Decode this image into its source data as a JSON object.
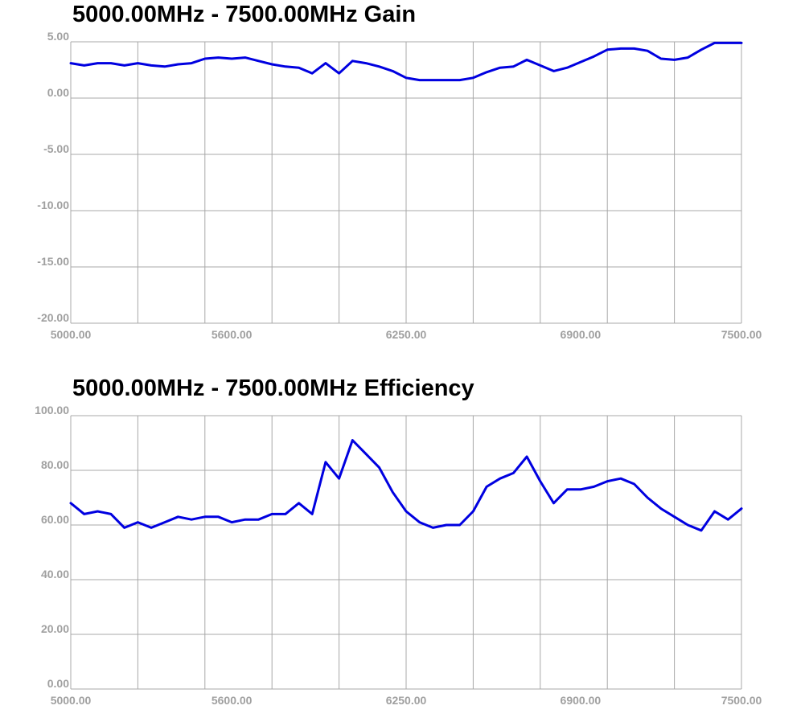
{
  "chart_data": [
    {
      "type": "line",
      "title": "5000.00MHz - 7500.00MHz Gain",
      "xlabel": "",
      "ylabel": "",
      "xlim": [
        5000,
        7500
      ],
      "ylim": [
        -20,
        5
      ],
      "x_ticks": [
        5000,
        5600,
        6250,
        6900,
        7500
      ],
      "x_tick_labels": [
        "5000.00",
        "5600.00",
        "6250.00",
        "6900.00",
        "7500.00"
      ],
      "y_tick_labels": [
        "5.00",
        "0.00",
        "-5.00",
        "-10.00",
        "-15.00",
        "-20.00"
      ],
      "y_ticks": [
        5,
        0,
        -5,
        -10,
        -15,
        -20
      ],
      "grid": true,
      "line_color": "#0000e0",
      "series": [
        {
          "x": [
            5000,
            5050,
            5100,
            5150,
            5200,
            5250,
            5300,
            5350,
            5400,
            5450,
            5500,
            5550,
            5600,
            5650,
            5700,
            5750,
            5800,
            5850,
            5900,
            5950,
            6000,
            6050,
            6100,
            6150,
            6200,
            6250,
            6300,
            6350,
            6400,
            6450,
            6500,
            6550,
            6600,
            6650,
            6700,
            6750,
            6800,
            6850,
            6900,
            6950,
            7000,
            7050,
            7100,
            7150,
            7200,
            7250,
            7300,
            7350,
            7400,
            7450,
            7500
          ],
          "y": [
            3.1,
            2.9,
            3.1,
            3.1,
            2.9,
            3.1,
            2.9,
            2.8,
            3.0,
            3.1,
            3.5,
            3.6,
            3.5,
            3.6,
            3.3,
            3.0,
            2.8,
            2.7,
            2.2,
            3.1,
            2.2,
            3.3,
            3.1,
            2.8,
            2.4,
            1.8,
            1.6,
            1.6,
            1.6,
            1.6,
            1.8,
            2.3,
            2.7,
            2.8,
            3.4,
            2.9,
            2.4,
            2.7,
            3.2,
            3.7,
            4.3,
            4.4,
            4.4,
            4.2,
            3.5,
            3.4,
            3.6,
            4.3,
            4.9,
            4.9,
            4.9
          ]
        }
      ]
    },
    {
      "type": "line",
      "title": "5000.00MHz - 7500.00MHz Efficiency",
      "xlabel": "",
      "ylabel": "",
      "xlim": [
        5000,
        7500
      ],
      "ylim": [
        0,
        100
      ],
      "x_ticks": [
        5000,
        5600,
        6250,
        6900,
        7500
      ],
      "x_tick_labels": [
        "5000.00",
        "5600.00",
        "6250.00",
        "6900.00",
        "7500.00"
      ],
      "y_tick_labels": [
        "100.00",
        "80.00",
        "60.00",
        "40.00",
        "20.00",
        "0.00"
      ],
      "y_ticks": [
        100,
        80,
        60,
        40,
        20,
        0
      ],
      "grid": true,
      "line_color": "#0000e0",
      "series": [
        {
          "x": [
            5000,
            5050,
            5100,
            5150,
            5200,
            5250,
            5300,
            5350,
            5400,
            5450,
            5500,
            5550,
            5600,
            5650,
            5700,
            5750,
            5800,
            5850,
            5900,
            5950,
            6000,
            6050,
            6100,
            6150,
            6200,
            6250,
            6300,
            6350,
            6400,
            6450,
            6500,
            6550,
            6600,
            6650,
            6700,
            6750,
            6800,
            6850,
            6900,
            6950,
            7000,
            7050,
            7100,
            7150,
            7200,
            7250,
            7300,
            7350,
            7400,
            7450,
            7500
          ],
          "y": [
            68,
            64,
            65,
            64,
            59,
            61,
            59,
            61,
            63,
            62,
            63,
            63,
            61,
            62,
            62,
            64,
            64,
            68,
            64,
            83,
            77,
            91,
            86,
            81,
            72,
            65,
            61,
            59,
            60,
            60,
            65,
            74,
            77,
            79,
            85,
            76,
            68,
            73,
            73,
            74,
            76,
            77,
            75,
            70,
            66,
            63,
            60,
            58,
            65,
            62,
            66
          ]
        }
      ]
    }
  ]
}
